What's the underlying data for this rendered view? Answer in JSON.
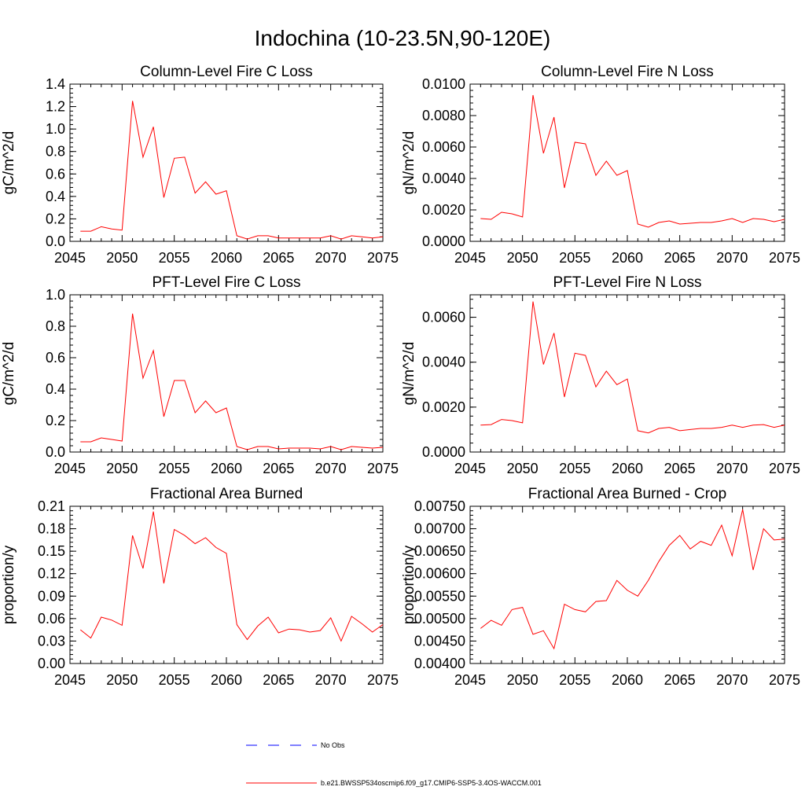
{
  "figure_title": "Indochina (10-23.5N,90-120E)",
  "colors": {
    "model": "#ff0000",
    "obs": "#0000ff",
    "axes": "#000000"
  },
  "legend": {
    "obs_label": "No Obs",
    "model_label": "b.e21.BWSSP534oscmip6.f09_g17.CMIP6-SSP5-3.4OS-WACCM.001"
  },
  "chart_data": [
    {
      "type": "line",
      "title": "Column-Level Fire C Loss",
      "xlabel": "",
      "ylabel": "gC/m^2/d",
      "xlim": [
        2045,
        2075
      ],
      "ylim": [
        0,
        1.4
      ],
      "xticks": [
        2045,
        2050,
        2055,
        2060,
        2065,
        2070,
        2075
      ],
      "xtick_labels": [
        "2045",
        "2050",
        "2055",
        "2060",
        "2065",
        "2070",
        "2075"
      ],
      "yticks": [
        0,
        0.2,
        0.4,
        0.6,
        0.8,
        1.0,
        1.2,
        1.4
      ],
      "ytick_labels": [
        "0.0",
        "0.2",
        "0.4",
        "0.6",
        "0.8",
        "1.0",
        "1.2",
        "1.4"
      ],
      "x": [
        2046,
        2047,
        2048,
        2049,
        2050,
        2051,
        2052,
        2053,
        2054,
        2055,
        2056,
        2057,
        2058,
        2059,
        2060,
        2061,
        2062,
        2063,
        2064,
        2065,
        2066,
        2067,
        2068,
        2069,
        2070,
        2071,
        2072,
        2073,
        2074,
        2075
      ],
      "series": [
        {
          "name": "b.e21.BWSSP534oscmip6.f09_g17.CMIP6-SSP5-3.4OS-WACCM.001",
          "values": [
            0.09,
            0.09,
            0.13,
            0.11,
            0.1,
            1.25,
            0.75,
            1.02,
            0.39,
            0.74,
            0.75,
            0.43,
            0.53,
            0.42,
            0.45,
            0.05,
            0.02,
            0.05,
            0.05,
            0.03,
            0.03,
            0.03,
            0.03,
            0.03,
            0.05,
            0.02,
            0.05,
            0.04,
            0.03,
            0.04
          ]
        }
      ]
    },
    {
      "type": "line",
      "title": "Column-Level Fire N Loss",
      "xlabel": "",
      "ylabel": "gN/m^2/d",
      "xlim": [
        2045,
        2075
      ],
      "ylim": [
        0,
        0.01
      ],
      "xticks": [
        2045,
        2050,
        2055,
        2060,
        2065,
        2070,
        2075
      ],
      "xtick_labels": [
        "2045",
        "2050",
        "2055",
        "2060",
        "2065",
        "2070",
        "2075"
      ],
      "yticks": [
        0,
        0.002,
        0.004,
        0.006,
        0.008,
        0.01
      ],
      "ytick_labels": [
        "0.0000",
        "0.0020",
        "0.0040",
        "0.0060",
        "0.0080",
        "0.0100"
      ],
      "x": [
        2046,
        2047,
        2048,
        2049,
        2050,
        2051,
        2052,
        2053,
        2054,
        2055,
        2056,
        2057,
        2058,
        2059,
        2060,
        2061,
        2062,
        2063,
        2064,
        2065,
        2066,
        2067,
        2068,
        2069,
        2070,
        2071,
        2072,
        2073,
        2074,
        2075
      ],
      "series": [
        {
          "name": "b.e21.BWSSP534oscmip6.f09_g17.CMIP6-SSP5-3.4OS-WACCM.001",
          "values": [
            0.00145,
            0.0014,
            0.00185,
            0.00175,
            0.00155,
            0.0093,
            0.0056,
            0.0079,
            0.0034,
            0.0063,
            0.0062,
            0.0042,
            0.0051,
            0.0042,
            0.0045,
            0.0011,
            0.0009,
            0.0012,
            0.0013,
            0.0011,
            0.00115,
            0.0012,
            0.0012,
            0.0013,
            0.00145,
            0.0012,
            0.00145,
            0.0014,
            0.00125,
            0.0014
          ]
        }
      ]
    },
    {
      "type": "line",
      "title": "PFT-Level Fire C Loss",
      "xlabel": "",
      "ylabel": "gC/m^2/d",
      "xlim": [
        2045,
        2075
      ],
      "ylim": [
        0,
        1.0
      ],
      "xticks": [
        2045,
        2050,
        2055,
        2060,
        2065,
        2070,
        2075
      ],
      "xtick_labels": [
        "2045",
        "2050",
        "2055",
        "2060",
        "2065",
        "2070",
        "2075"
      ],
      "yticks": [
        0,
        0.2,
        0.4,
        0.6,
        0.8,
        1.0
      ],
      "ytick_labels": [
        "0.0",
        "0.2",
        "0.4",
        "0.6",
        "0.8",
        "1.0"
      ],
      "x": [
        2046,
        2047,
        2048,
        2049,
        2050,
        2051,
        2052,
        2053,
        2054,
        2055,
        2056,
        2057,
        2058,
        2059,
        2060,
        2061,
        2062,
        2063,
        2064,
        2065,
        2066,
        2067,
        2068,
        2069,
        2070,
        2071,
        2072,
        2073,
        2074,
        2075
      ],
      "series": [
        {
          "name": "b.e21.BWSSP534oscmip6.f09_g17.CMIP6-SSP5-3.4OS-WACCM.001",
          "values": [
            0.065,
            0.065,
            0.09,
            0.08,
            0.07,
            0.88,
            0.47,
            0.645,
            0.225,
            0.455,
            0.455,
            0.25,
            0.325,
            0.25,
            0.28,
            0.035,
            0.015,
            0.035,
            0.035,
            0.02,
            0.025,
            0.025,
            0.025,
            0.02,
            0.035,
            0.015,
            0.035,
            0.03,
            0.025,
            0.03
          ]
        }
      ]
    },
    {
      "type": "line",
      "title": "PFT-Level Fire N Loss",
      "xlabel": "",
      "ylabel": "gN/m^2/d",
      "xlim": [
        2045,
        2075
      ],
      "ylim": [
        0,
        0.007
      ],
      "xticks": [
        2045,
        2050,
        2055,
        2060,
        2065,
        2070,
        2075
      ],
      "xtick_labels": [
        "2045",
        "2050",
        "2055",
        "2060",
        "2065",
        "2070",
        "2075"
      ],
      "yticks": [
        0,
        0.002,
        0.004,
        0.006
      ],
      "ytick_labels": [
        "0.0000",
        "0.0020",
        "0.0040",
        "0.0060"
      ],
      "x": [
        2046,
        2047,
        2048,
        2049,
        2050,
        2051,
        2052,
        2053,
        2054,
        2055,
        2056,
        2057,
        2058,
        2059,
        2060,
        2061,
        2062,
        2063,
        2064,
        2065,
        2066,
        2067,
        2068,
        2069,
        2070,
        2071,
        2072,
        2073,
        2074,
        2075
      ],
      "series": [
        {
          "name": "b.e21.BWSSP534oscmip6.f09_g17.CMIP6-SSP5-3.4OS-WACCM.001",
          "values": [
            0.0012,
            0.00122,
            0.00145,
            0.0014,
            0.0013,
            0.0067,
            0.0039,
            0.0053,
            0.00245,
            0.0044,
            0.0043,
            0.0029,
            0.0036,
            0.003,
            0.00325,
            0.00095,
            0.00085,
            0.00105,
            0.0011,
            0.00095,
            0.001,
            0.00105,
            0.00105,
            0.0011,
            0.0012,
            0.0011,
            0.0012,
            0.00122,
            0.0011,
            0.0012
          ]
        }
      ]
    },
    {
      "type": "line",
      "title": "Fractional Area Burned",
      "xlabel": "",
      "ylabel": "proportion/y",
      "xlim": [
        2045,
        2075
      ],
      "ylim": [
        0,
        0.21
      ],
      "xticks": [
        2045,
        2050,
        2055,
        2060,
        2065,
        2070,
        2075
      ],
      "xtick_labels": [
        "2045",
        "2050",
        "2055",
        "2060",
        "2065",
        "2070",
        "2075"
      ],
      "yticks": [
        0,
        0.03,
        0.06,
        0.09,
        0.12,
        0.15,
        0.18,
        0.21
      ],
      "ytick_labels": [
        "0.00",
        "0.03",
        "0.06",
        "0.09",
        "0.12",
        "0.15",
        "0.18",
        "0.21"
      ],
      "x": [
        2046,
        2047,
        2048,
        2049,
        2050,
        2051,
        2052,
        2053,
        2054,
        2055,
        2056,
        2057,
        2058,
        2059,
        2060,
        2061,
        2062,
        2063,
        2064,
        2065,
        2066,
        2067,
        2068,
        2069,
        2070,
        2071,
        2072,
        2073,
        2074,
        2075
      ],
      "series": [
        {
          "name": "b.e21.BWSSP534oscmip6.f09_g17.CMIP6-SSP5-3.4OS-WACCM.001",
          "values": [
            0.045,
            0.034,
            0.062,
            0.058,
            0.051,
            0.171,
            0.127,
            0.203,
            0.107,
            0.179,
            0.171,
            0.16,
            0.168,
            0.155,
            0.147,
            0.052,
            0.032,
            0.05,
            0.062,
            0.041,
            0.046,
            0.045,
            0.042,
            0.044,
            0.061,
            0.03,
            0.063,
            0.053,
            0.042,
            0.052
          ]
        }
      ]
    },
    {
      "type": "line",
      "title": "Fractional Area Burned - Crop",
      "xlabel": "",
      "ylabel": "proportion/y",
      "xlim": [
        2045,
        2075
      ],
      "ylim": [
        0.004,
        0.0075
      ],
      "xticks": [
        2045,
        2050,
        2055,
        2060,
        2065,
        2070,
        2075
      ],
      "xtick_labels": [
        "2045",
        "2050",
        "2055",
        "2060",
        "2065",
        "2070",
        "2075"
      ],
      "yticks": [
        0.004,
        0.0045,
        0.005,
        0.0055,
        0.006,
        0.0065,
        0.007,
        0.0075
      ],
      "ytick_labels": [
        "0.00400",
        "0.00450",
        "0.00500",
        "0.00550",
        "0.00600",
        "0.00650",
        "0.00700",
        "0.00750"
      ],
      "x": [
        2046,
        2047,
        2048,
        2049,
        2050,
        2051,
        2052,
        2053,
        2054,
        2055,
        2056,
        2057,
        2058,
        2059,
        2060,
        2061,
        2062,
        2063,
        2064,
        2065,
        2066,
        2067,
        2068,
        2069,
        2070,
        2071,
        2072,
        2073,
        2074,
        2075
      ],
      "series": [
        {
          "name": "b.e21.BWSSP534oscmip6.f09_g17.CMIP6-SSP5-3.4OS-WACCM.001",
          "values": [
            0.00478,
            0.00496,
            0.00485,
            0.0052,
            0.00525,
            0.00465,
            0.00473,
            0.00433,
            0.00532,
            0.0052,
            0.00515,
            0.00538,
            0.0054,
            0.00585,
            0.00563,
            0.0055,
            0.00585,
            0.00627,
            0.00663,
            0.00685,
            0.00655,
            0.00672,
            0.00663,
            0.00708,
            0.0064,
            0.00743,
            0.00608,
            0.007,
            0.00675,
            0.00677
          ]
        }
      ]
    }
  ]
}
